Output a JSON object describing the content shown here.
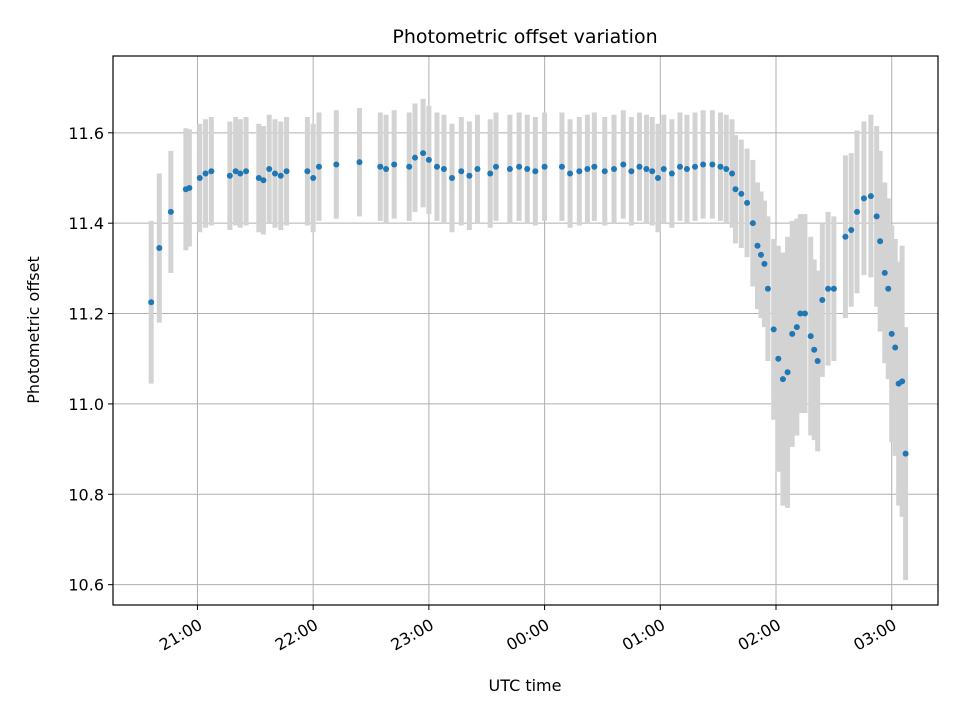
{
  "chart_data": {
    "type": "scatter",
    "title": "Photometric offset variation",
    "xlabel": "UTC time",
    "ylabel": "Photometric offset",
    "x_unit": "hours past midnight UTC (negative = previous day)",
    "xlim": [
      -3.73,
      3.4
    ],
    "ylim": [
      10.555,
      11.77
    ],
    "grid": true,
    "x_ticks": [
      {
        "value": -3,
        "label": "21:00"
      },
      {
        "value": -2,
        "label": "22:00"
      },
      {
        "value": -1,
        "label": "23:00"
      },
      {
        "value": 0,
        "label": "00:00"
      },
      {
        "value": 1,
        "label": "01:00"
      },
      {
        "value": 2,
        "label": "02:00"
      },
      {
        "value": 3,
        "label": "03:00"
      }
    ],
    "y_ticks": [
      {
        "value": 10.6,
        "label": "10.6"
      },
      {
        "value": 10.8,
        "label": "10.8"
      },
      {
        "value": 11.0,
        "label": "11.0"
      },
      {
        "value": 11.2,
        "label": "11.2"
      },
      {
        "value": 11.4,
        "label": "11.4"
      },
      {
        "value": 11.6,
        "label": "11.6"
      }
    ],
    "colors": {
      "marker": "#1f77b4",
      "errorbar": "#d3d3d3",
      "grid": "#b0b0b0"
    },
    "points": [
      [
        -3.4,
        11.225,
        0.18
      ],
      [
        -3.33,
        11.345,
        0.165
      ],
      [
        -3.23,
        11.425,
        0.135
      ],
      [
        -3.1,
        11.475,
        0.135
      ],
      [
        -3.07,
        11.478,
        0.13
      ],
      [
        -2.98,
        11.5,
        0.12
      ],
      [
        -2.93,
        11.51,
        0.12
      ],
      [
        -2.88,
        11.515,
        0.12
      ],
      [
        -2.72,
        11.505,
        0.12
      ],
      [
        -2.67,
        11.515,
        0.12
      ],
      [
        -2.63,
        11.51,
        0.12
      ],
      [
        -2.58,
        11.515,
        0.12
      ],
      [
        -2.47,
        11.5,
        0.12
      ],
      [
        -2.43,
        11.495,
        0.12
      ],
      [
        -2.38,
        11.52,
        0.12
      ],
      [
        -2.33,
        11.51,
        0.12
      ],
      [
        -2.28,
        11.505,
        0.12
      ],
      [
        -2.23,
        11.515,
        0.12
      ],
      [
        -2.05,
        11.515,
        0.12
      ],
      [
        -2.0,
        11.5,
        0.12
      ],
      [
        -1.95,
        11.525,
        0.12
      ],
      [
        -1.8,
        11.53,
        0.12
      ],
      [
        -1.6,
        11.535,
        0.12
      ],
      [
        -1.42,
        11.525,
        0.12
      ],
      [
        -1.37,
        11.52,
        0.12
      ],
      [
        -1.3,
        11.53,
        0.12
      ],
      [
        -1.17,
        11.525,
        0.12
      ],
      [
        -1.12,
        11.545,
        0.12
      ],
      [
        -1.05,
        11.555,
        0.12
      ],
      [
        -1.0,
        11.54,
        0.12
      ],
      [
        -0.93,
        11.525,
        0.12
      ],
      [
        -0.87,
        11.52,
        0.12
      ],
      [
        -0.8,
        11.5,
        0.12
      ],
      [
        -0.72,
        11.515,
        0.12
      ],
      [
        -0.65,
        11.505,
        0.12
      ],
      [
        -0.58,
        11.52,
        0.12
      ],
      [
        -0.47,
        11.51,
        0.12
      ],
      [
        -0.42,
        11.525,
        0.12
      ],
      [
        -0.3,
        11.52,
        0.12
      ],
      [
        -0.22,
        11.525,
        0.12
      ],
      [
        -0.15,
        11.52,
        0.12
      ],
      [
        -0.08,
        11.515,
        0.12
      ],
      [
        0.0,
        11.525,
        0.12
      ],
      [
        0.15,
        11.525,
        0.12
      ],
      [
        0.22,
        11.51,
        0.12
      ],
      [
        0.3,
        11.515,
        0.12
      ],
      [
        0.37,
        11.52,
        0.12
      ],
      [
        0.43,
        11.525,
        0.12
      ],
      [
        0.52,
        11.515,
        0.12
      ],
      [
        0.6,
        11.52,
        0.12
      ],
      [
        0.68,
        11.53,
        0.12
      ],
      [
        0.75,
        11.515,
        0.12
      ],
      [
        0.82,
        11.525,
        0.12
      ],
      [
        0.88,
        11.52,
        0.12
      ],
      [
        0.93,
        11.515,
        0.12
      ],
      [
        0.98,
        11.5,
        0.12
      ],
      [
        1.03,
        11.52,
        0.12
      ],
      [
        1.1,
        11.51,
        0.12
      ],
      [
        1.17,
        11.525,
        0.12
      ],
      [
        1.23,
        11.52,
        0.12
      ],
      [
        1.3,
        11.525,
        0.12
      ],
      [
        1.37,
        11.53,
        0.12
      ],
      [
        1.45,
        11.53,
        0.12
      ],
      [
        1.52,
        11.525,
        0.12
      ],
      [
        1.57,
        11.52,
        0.12
      ],
      [
        1.62,
        11.51,
        0.12
      ],
      [
        1.65,
        11.475,
        0.12
      ],
      [
        1.7,
        11.465,
        0.12
      ],
      [
        1.75,
        11.445,
        0.12
      ],
      [
        1.8,
        11.4,
        0.14
      ],
      [
        1.84,
        11.35,
        0.14
      ],
      [
        1.87,
        11.33,
        0.14
      ],
      [
        1.9,
        11.31,
        0.14
      ],
      [
        1.93,
        11.255,
        0.16
      ],
      [
        1.98,
        11.165,
        0.2
      ],
      [
        2.02,
        11.1,
        0.25
      ],
      [
        2.06,
        11.055,
        0.28
      ],
      [
        2.1,
        11.07,
        0.3
      ],
      [
        2.14,
        11.155,
        0.25
      ],
      [
        2.18,
        11.17,
        0.24
      ],
      [
        2.21,
        11.2,
        0.22
      ],
      [
        2.25,
        11.2,
        0.22
      ],
      [
        2.3,
        11.15,
        0.22
      ],
      [
        2.33,
        11.12,
        0.2
      ],
      [
        2.36,
        11.095,
        0.2
      ],
      [
        2.4,
        11.23,
        0.17
      ],
      [
        2.45,
        11.255,
        0.17
      ],
      [
        2.5,
        11.255,
        0.16
      ],
      [
        2.6,
        11.37,
        0.18
      ],
      [
        2.65,
        11.385,
        0.17
      ],
      [
        2.7,
        11.425,
        0.18
      ],
      [
        2.76,
        11.455,
        0.17
      ],
      [
        2.82,
        11.46,
        0.18
      ],
      [
        2.87,
        11.415,
        0.2
      ],
      [
        2.9,
        11.36,
        0.2
      ],
      [
        2.94,
        11.29,
        0.2
      ],
      [
        2.97,
        11.255,
        0.2
      ],
      [
        3.0,
        11.155,
        0.24
      ],
      [
        3.03,
        11.125,
        0.24
      ],
      [
        3.06,
        11.045,
        0.27
      ],
      [
        3.09,
        11.05,
        0.3
      ],
      [
        3.12,
        10.89,
        0.28
      ]
    ]
  }
}
